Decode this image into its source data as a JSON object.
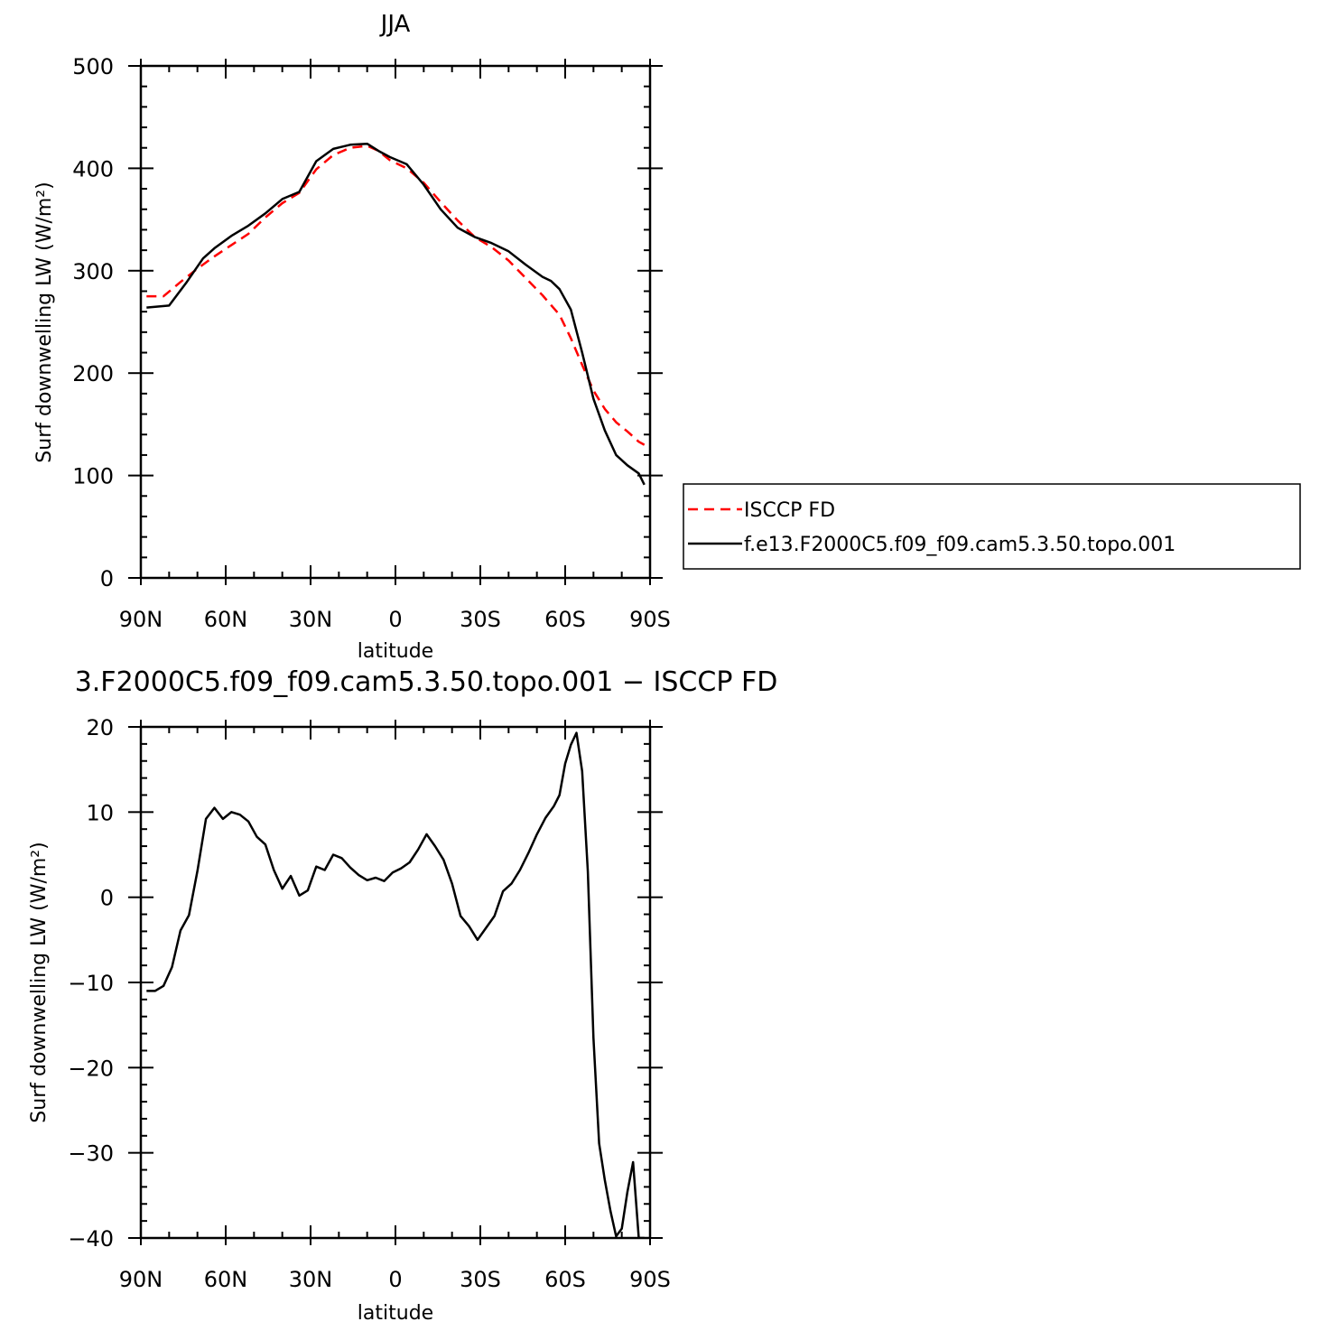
{
  "chart_data": [
    {
      "type": "line",
      "title": "JJA",
      "xlabel": "latitude",
      "ylabel": "Surf downwelling LW (W/m²)",
      "xlim": [
        90,
        -90
      ],
      "ylim": [
        0,
        500
      ],
      "x_ticks": [
        90,
        60,
        30,
        0,
        -30,
        -60,
        -90
      ],
      "x_tick_labels": [
        "90N",
        "60N",
        "30N",
        "0",
        "30S",
        "60S",
        "90S"
      ],
      "y_ticks": [
        0,
        100,
        200,
        300,
        400,
        500
      ],
      "y_tick_labels": [
        "0",
        "100",
        "200",
        "300",
        "400",
        "500"
      ],
      "legend_position": "right",
      "series": [
        {
          "name": "ISCCP FD",
          "color": "#ff0000",
          "dash": "dashed",
          "x": [
            88,
            82,
            76,
            70,
            64,
            58,
            52,
            46,
            40,
            34,
            28,
            22,
            16,
            10,
            6,
            2,
            -4,
            -10,
            -16,
            -22,
            -28,
            -34,
            -40,
            -46,
            -52,
            -58,
            -62,
            -66,
            -70,
            -74,
            -78,
            -82,
            -86,
            -88
          ],
          "y": [
            275,
            275,
            289,
            302,
            314,
            325,
            336,
            352,
            366,
            376,
            399,
            413,
            420,
            422,
            417,
            408,
            400,
            386,
            367,
            349,
            333,
            323,
            310,
            293,
            276,
            257,
            234,
            208,
            183,
            165,
            152,
            143,
            133,
            130
          ]
        },
        {
          "name": "f.e13.F2000C5.f09_f09.cam5.3.50.topo.001",
          "color": "#000000",
          "dash": "solid",
          "x": [
            88,
            80,
            74,
            68,
            64,
            58,
            52,
            46,
            40,
            34,
            28,
            22,
            16,
            10,
            6,
            2,
            -4,
            -10,
            -16,
            -22,
            -28,
            -34,
            -40,
            -46,
            -52,
            -55,
            -58,
            -62,
            -66,
            -70,
            -74,
            -78,
            -82,
            -86,
            -88
          ],
          "y": [
            264,
            266,
            288,
            312,
            322,
            334,
            344,
            356,
            370,
            377,
            407,
            419,
            423,
            424,
            417,
            411,
            404,
            384,
            360,
            342,
            333,
            327,
            319,
            306,
            294,
            290,
            282,
            262,
            220,
            175,
            144,
            120,
            110,
            102,
            91
          ]
        }
      ]
    },
    {
      "type": "line",
      "title": "3.F2000C5.f09_f09.cam5.3.50.topo.001 − ISCCP FD",
      "xlabel": "latitude",
      "ylabel": "Surf downwelling LW (W/m²)",
      "xlim": [
        90,
        -90
      ],
      "ylim": [
        -40,
        20
      ],
      "x_ticks": [
        90,
        60,
        30,
        0,
        -30,
        -60,
        -90
      ],
      "x_tick_labels": [
        "90N",
        "60N",
        "30N",
        "0",
        "30S",
        "60S",
        "90S"
      ],
      "y_ticks": [
        -40,
        -30,
        -20,
        -10,
        0,
        10,
        20
      ],
      "y_tick_labels": [
        "−40",
        "−30",
        "−20",
        "−10",
        "0",
        "10",
        "20"
      ],
      "series": [
        {
          "color": "#000000",
          "dash": "solid",
          "x": [
            88,
            85,
            82,
            79,
            76,
            73,
            70,
            67,
            64,
            61,
            58,
            55,
            52,
            49,
            46,
            43,
            40,
            37,
            34,
            31,
            28,
            25,
            22,
            19,
            16,
            13,
            10,
            7,
            4,
            1,
            -2,
            -5,
            -8,
            -11,
            -14,
            -17,
            -20,
            -23,
            -26,
            -29,
            -32,
            -35,
            -38,
            -41,
            -44,
            -47,
            -50,
            -53,
            -56,
            -58,
            -60,
            -62,
            -64,
            -66,
            -68,
            -70,
            -72,
            -74,
            -76,
            -78,
            -80,
            -82,
            -84,
            -86,
            -88
          ],
          "y": [
            -11,
            -11,
            -10.4,
            -8.2,
            -3.9,
            -2.1,
            3.1,
            9.2,
            10.5,
            9.2,
            10.0,
            9.7,
            8.9,
            7.1,
            6.2,
            3.2,
            1.0,
            2.5,
            0.2,
            0.8,
            3.6,
            3.2,
            5.0,
            4.6,
            3.5,
            2.6,
            2.0,
            2.3,
            1.9,
            2.9,
            3.4,
            4.1,
            5.6,
            7.4,
            6.0,
            4.4,
            1.6,
            -2.2,
            -3.4,
            -5.0,
            -3.6,
            -2.2,
            0.7,
            1.6,
            3.2,
            5.2,
            7.4,
            9.3,
            10.7,
            12.0,
            15.7,
            17.9,
            19.3,
            14.8,
            3.0,
            -16.5,
            -28.9,
            -33.2,
            -36.8,
            -39.8,
            -38.9,
            -34.6,
            -31.1,
            -40.0,
            -40.0
          ]
        }
      ]
    }
  ],
  "legend": {
    "entries": [
      {
        "label": "ISCCP FD",
        "color": "#ff0000",
        "dash": "dashed"
      },
      {
        "label": "f.e13.F2000C5.f09_f09.cam5.3.50.topo.001",
        "color": "#000000",
        "dash": "solid"
      }
    ]
  }
}
